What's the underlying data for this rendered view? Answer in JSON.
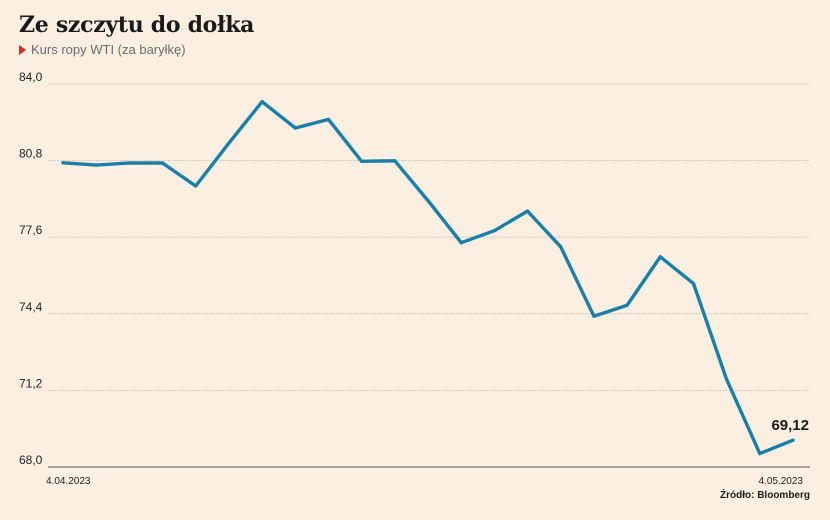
{
  "header": {
    "title": "Ze szczytu do dołka",
    "subtitle": "Kurs ropy WTI (za baryłkę)"
  },
  "footer": {
    "source": "Źródło: Bloomberg"
  },
  "chart_data": {
    "type": "line",
    "title": "Ze szczytu do dołka",
    "subtitle": "Kurs ropy WTI (za baryłkę)",
    "ylim": [
      68.0,
      84.0
    ],
    "yticks": [
      68.0,
      71.2,
      74.4,
      77.6,
      80.8,
      84.0
    ],
    "ytick_labels": [
      "68,0",
      "71,2",
      "74,4",
      "77,6",
      "80,8",
      "84,0"
    ],
    "xtick_labels": [
      "4.04.2023",
      "4.05.2023"
    ],
    "grid": true,
    "line_color": "#1a7fa8",
    "series": [
      {
        "name": "",
        "values": [
          80.71,
          80.61,
          80.7,
          80.7,
          79.74,
          81.53,
          83.26,
          82.16,
          82.52,
          80.77,
          80.79,
          79.13,
          77.37,
          77.87,
          78.69,
          77.2,
          74.3,
          74.76,
          76.78,
          75.66,
          71.66,
          68.56,
          69.12
        ]
      }
    ],
    "last_label": "69,12"
  }
}
